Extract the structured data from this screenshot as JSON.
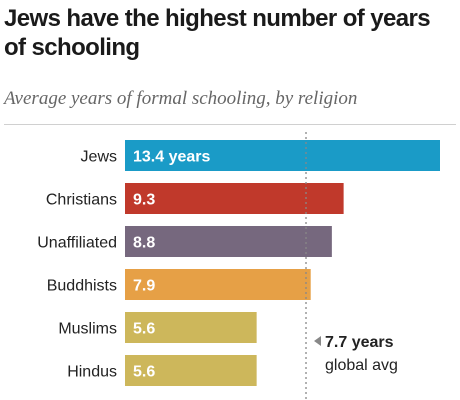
{
  "chart_data": {
    "type": "bar",
    "orientation": "horizontal",
    "title": "Jews have the highest number of years of schooling",
    "subtitle": "Average years of formal schooling, by religion",
    "categories": [
      "Jews",
      "Christians",
      "Unaffiliated",
      "Buddhists",
      "Muslims",
      "Hindus"
    ],
    "values": [
      13.4,
      9.3,
      8.8,
      7.9,
      5.6,
      5.6
    ],
    "value_labels": [
      "13.4 years",
      "9.3",
      "8.8",
      "7.9",
      "5.6",
      "5.6"
    ],
    "colors": [
      "#1a9bc7",
      "#c0392b",
      "#76687e",
      "#e6a046",
      "#cdb75b",
      "#cdb75b"
    ],
    "xlim": [
      0,
      14
    ],
    "reference_line": {
      "value": 7.7,
      "label_value": "7.7 years",
      "label_text": "global avg"
    }
  }
}
